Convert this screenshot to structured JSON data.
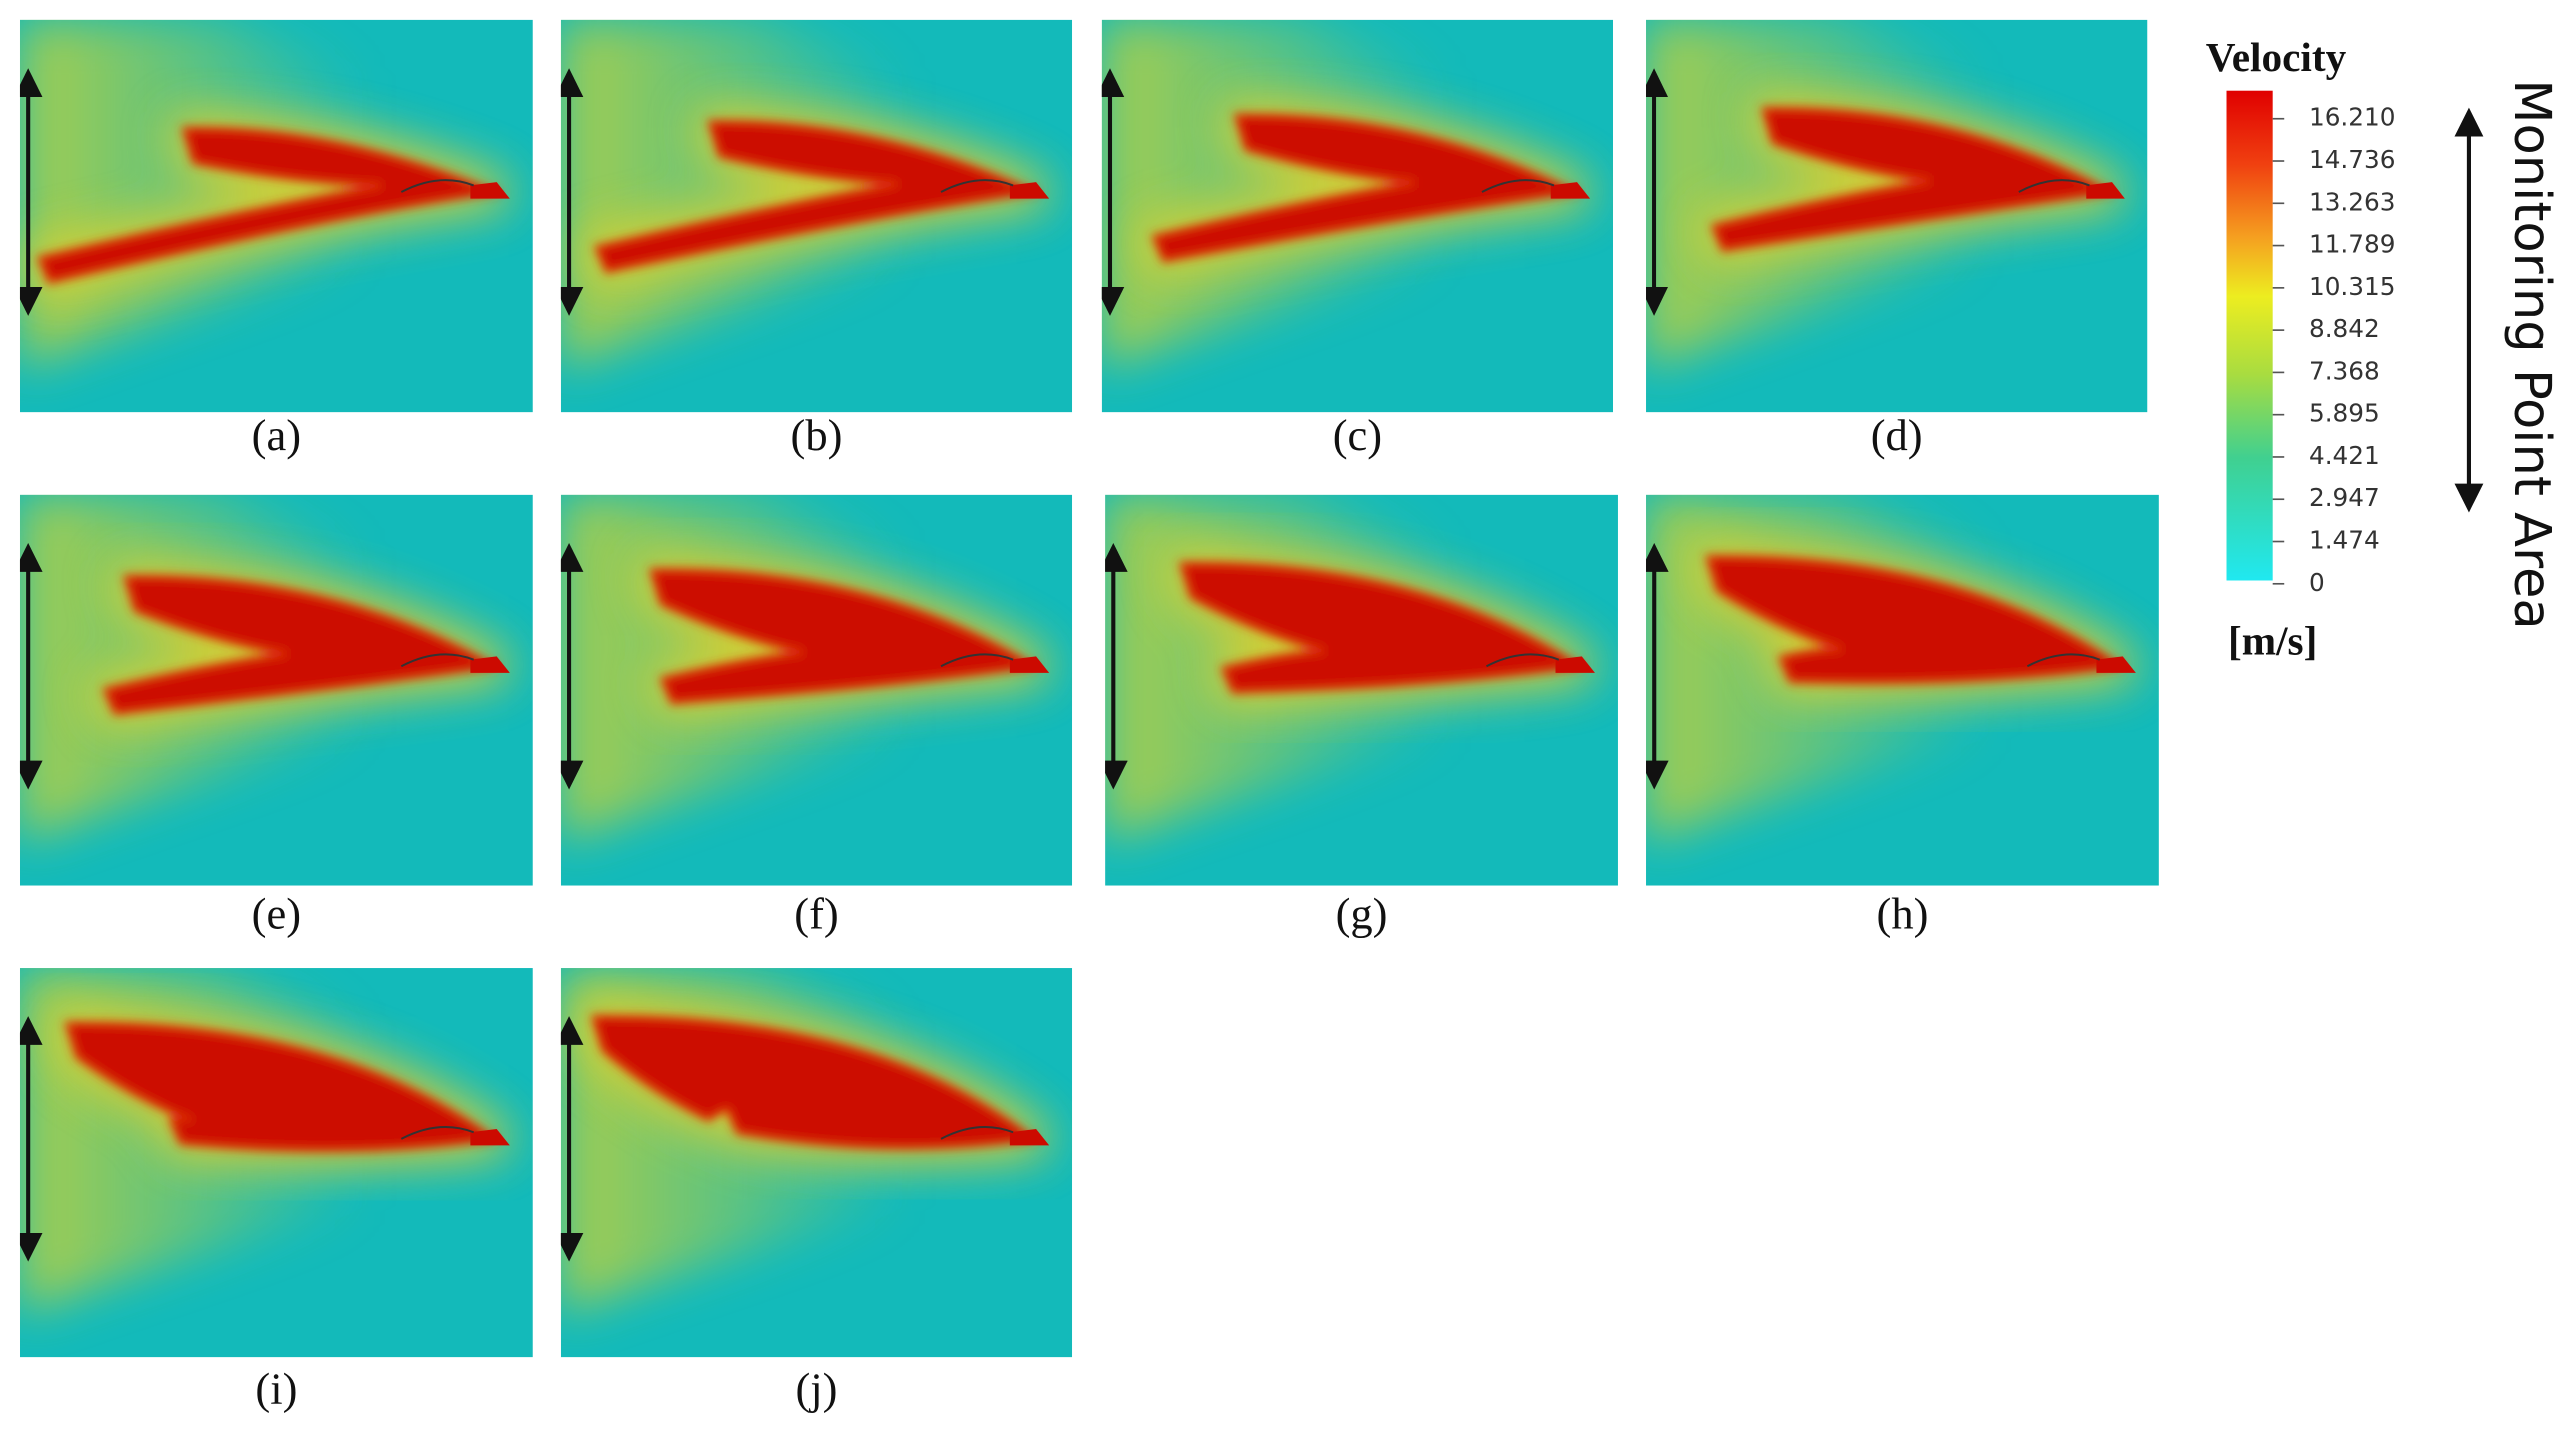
{
  "panels": [
    {
      "label": "(a)"
    },
    {
      "label": "(b)"
    },
    {
      "label": "(c)"
    },
    {
      "label": "(d)"
    },
    {
      "label": "(e)"
    },
    {
      "label": "(f)"
    },
    {
      "label": "(g)"
    },
    {
      "label": "(h)"
    },
    {
      "label": "(i)"
    },
    {
      "label": "(j)"
    }
  ],
  "legend": {
    "title": "Velocity",
    "ticks": [
      "16.210",
      "14.736",
      "13.263",
      "11.789",
      "10.315",
      "8.842",
      "7.368",
      "5.895",
      "4.421",
      "2.947",
      "1.474",
      "0"
    ],
    "unit": "[m/s]"
  },
  "annotation": "Monitoring Point Area"
}
